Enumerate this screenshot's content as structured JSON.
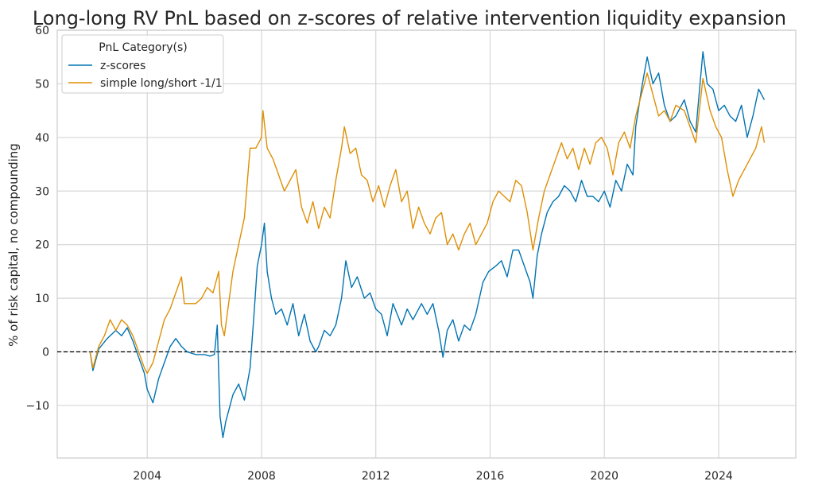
{
  "chart_data": {
    "type": "line",
    "title": "Long-long RV PnL based on z-scores of relative intervention liquidity expansion",
    "xlabel": "",
    "ylabel": "% of risk capital, no compounding",
    "xlim": [
      2000.85,
      2026.7
    ],
    "ylim": [
      -19.8,
      60
    ],
    "x_ticks": [
      2004,
      2008,
      2012,
      2016,
      2020,
      2024
    ],
    "x_tick_labels": [
      "2004",
      "2008",
      "2012",
      "2016",
      "2020",
      "2024"
    ],
    "y_ticks": [
      -10,
      0,
      10,
      20,
      30,
      40,
      50,
      60
    ],
    "y_tick_labels": [
      "−10",
      "0",
      "10",
      "20",
      "30",
      "40",
      "50",
      "60"
    ],
    "grid": true,
    "zero_line": {
      "y": 0,
      "style": "dashed",
      "color": "#000000"
    },
    "legend": {
      "title": "PnL Category(s)",
      "position": "top-left",
      "entries": [
        "z-scores",
        "simple long/short -1/1"
      ]
    },
    "series": [
      {
        "name": "z-scores",
        "color": "#0173b2",
        "points": [
          [
            2002.0,
            0
          ],
          [
            2002.1,
            -3.5
          ],
          [
            2002.3,
            0.5
          ],
          [
            2002.6,
            2.5
          ],
          [
            2002.9,
            4
          ],
          [
            2003.1,
            3
          ],
          [
            2003.3,
            4.5
          ],
          [
            2003.5,
            2
          ],
          [
            2003.7,
            -1
          ],
          [
            2003.9,
            -4
          ],
          [
            2004.0,
            -7
          ],
          [
            2004.2,
            -9.5
          ],
          [
            2004.4,
            -5
          ],
          [
            2004.6,
            -2
          ],
          [
            2004.8,
            1
          ],
          [
            2005.0,
            2.5
          ],
          [
            2005.2,
            1
          ],
          [
            2005.4,
            0
          ],
          [
            2005.7,
            -0.5
          ],
          [
            2006.0,
            -0.5
          ],
          [
            2006.2,
            -0.8
          ],
          [
            2006.35,
            -0.5
          ],
          [
            2006.45,
            5
          ],
          [
            2006.55,
            -12
          ],
          [
            2006.65,
            -16
          ],
          [
            2006.75,
            -13
          ],
          [
            2006.9,
            -10
          ],
          [
            2007.0,
            -8
          ],
          [
            2007.2,
            -6
          ],
          [
            2007.4,
            -9
          ],
          [
            2007.6,
            -3
          ],
          [
            2007.75,
            8
          ],
          [
            2007.85,
            16
          ],
          [
            2008.0,
            20
          ],
          [
            2008.1,
            24
          ],
          [
            2008.2,
            15
          ],
          [
            2008.35,
            10
          ],
          [
            2008.5,
            7
          ],
          [
            2008.7,
            8
          ],
          [
            2008.9,
            5
          ],
          [
            2009.1,
            9
          ],
          [
            2009.3,
            3
          ],
          [
            2009.5,
            7
          ],
          [
            2009.7,
            2
          ],
          [
            2009.9,
            0
          ],
          [
            2010.0,
            1
          ],
          [
            2010.2,
            4
          ],
          [
            2010.4,
            3
          ],
          [
            2010.6,
            5
          ],
          [
            2010.8,
            10
          ],
          [
            2010.95,
            17
          ],
          [
            2011.15,
            12
          ],
          [
            2011.35,
            14
          ],
          [
            2011.6,
            10
          ],
          [
            2011.8,
            11
          ],
          [
            2012.0,
            8
          ],
          [
            2012.2,
            7
          ],
          [
            2012.4,
            3
          ],
          [
            2012.6,
            9
          ],
          [
            2012.9,
            5
          ],
          [
            2013.1,
            8
          ],
          [
            2013.3,
            6
          ],
          [
            2013.6,
            9
          ],
          [
            2013.8,
            7
          ],
          [
            2014.0,
            9
          ],
          [
            2014.2,
            4
          ],
          [
            2014.35,
            -1
          ],
          [
            2014.5,
            4
          ],
          [
            2014.7,
            6
          ],
          [
            2014.9,
            2
          ],
          [
            2015.1,
            5
          ],
          [
            2015.3,
            4
          ],
          [
            2015.5,
            7
          ],
          [
            2015.75,
            13
          ],
          [
            2015.95,
            15
          ],
          [
            2016.2,
            16
          ],
          [
            2016.4,
            17
          ],
          [
            2016.6,
            14
          ],
          [
            2016.8,
            19
          ],
          [
            2017.0,
            19
          ],
          [
            2017.2,
            16
          ],
          [
            2017.4,
            13
          ],
          [
            2017.5,
            10
          ],
          [
            2017.65,
            18
          ],
          [
            2017.8,
            22
          ],
          [
            2018.0,
            26
          ],
          [
            2018.2,
            28
          ],
          [
            2018.4,
            29
          ],
          [
            2018.6,
            31
          ],
          [
            2018.8,
            30
          ],
          [
            2019.0,
            28
          ],
          [
            2019.2,
            32
          ],
          [
            2019.4,
            29
          ],
          [
            2019.6,
            29
          ],
          [
            2019.8,
            28
          ],
          [
            2020.0,
            30
          ],
          [
            2020.2,
            27
          ],
          [
            2020.4,
            32
          ],
          [
            2020.6,
            30
          ],
          [
            2020.8,
            35
          ],
          [
            2021.0,
            33
          ],
          [
            2021.1,
            42
          ],
          [
            2021.3,
            49
          ],
          [
            2021.5,
            55
          ],
          [
            2021.7,
            50
          ],
          [
            2021.9,
            52
          ],
          [
            2022.1,
            46
          ],
          [
            2022.3,
            43
          ],
          [
            2022.5,
            44
          ],
          [
            2022.8,
            47
          ],
          [
            2023.0,
            43
          ],
          [
            2023.2,
            41
          ],
          [
            2023.45,
            56
          ],
          [
            2023.6,
            50
          ],
          [
            2023.8,
            49
          ],
          [
            2024.0,
            45
          ],
          [
            2024.2,
            46
          ],
          [
            2024.4,
            44
          ],
          [
            2024.6,
            43
          ],
          [
            2024.8,
            46
          ],
          [
            2025.0,
            40
          ],
          [
            2025.2,
            44
          ],
          [
            2025.4,
            49
          ],
          [
            2025.6,
            47
          ]
        ]
      },
      {
        "name": "simple long/short -1/1",
        "color": "#de8f05",
        "points": [
          [
            2002.0,
            0
          ],
          [
            2002.1,
            -3
          ],
          [
            2002.3,
            1
          ],
          [
            2002.5,
            3
          ],
          [
            2002.7,
            6
          ],
          [
            2002.9,
            4
          ],
          [
            2003.1,
            6
          ],
          [
            2003.3,
            5
          ],
          [
            2003.5,
            3
          ],
          [
            2003.7,
            0
          ],
          [
            2003.9,
            -3
          ],
          [
            2004.0,
            -4
          ],
          [
            2004.2,
            -2
          ],
          [
            2004.4,
            2
          ],
          [
            2004.6,
            6
          ],
          [
            2004.8,
            8
          ],
          [
            2005.0,
            11
          ],
          [
            2005.2,
            14
          ],
          [
            2005.3,
            9
          ],
          [
            2005.5,
            9
          ],
          [
            2005.7,
            9
          ],
          [
            2005.9,
            10
          ],
          [
            2006.1,
            12
          ],
          [
            2006.3,
            11
          ],
          [
            2006.5,
            15
          ],
          [
            2006.6,
            5
          ],
          [
            2006.7,
            3
          ],
          [
            2006.8,
            7
          ],
          [
            2007.0,
            15
          ],
          [
            2007.2,
            20
          ],
          [
            2007.4,
            25
          ],
          [
            2007.6,
            38
          ],
          [
            2007.8,
            38
          ],
          [
            2008.0,
            40
          ],
          [
            2008.05,
            45
          ],
          [
            2008.2,
            38
          ],
          [
            2008.4,
            36
          ],
          [
            2008.6,
            33
          ],
          [
            2008.8,
            30
          ],
          [
            2009.0,
            32
          ],
          [
            2009.2,
            34
          ],
          [
            2009.4,
            27
          ],
          [
            2009.6,
            24
          ],
          [
            2009.8,
            28
          ],
          [
            2010.0,
            23
          ],
          [
            2010.2,
            27
          ],
          [
            2010.4,
            25
          ],
          [
            2010.6,
            32
          ],
          [
            2010.8,
            38
          ],
          [
            2010.9,
            42
          ],
          [
            2011.1,
            37
          ],
          [
            2011.3,
            38
          ],
          [
            2011.5,
            33
          ],
          [
            2011.7,
            32
          ],
          [
            2011.9,
            28
          ],
          [
            2012.1,
            31
          ],
          [
            2012.3,
            27
          ],
          [
            2012.5,
            31
          ],
          [
            2012.7,
            34
          ],
          [
            2012.9,
            28
          ],
          [
            2013.1,
            30
          ],
          [
            2013.3,
            23
          ],
          [
            2013.5,
            27
          ],
          [
            2013.7,
            24
          ],
          [
            2013.9,
            22
          ],
          [
            2014.1,
            25
          ],
          [
            2014.3,
            26
          ],
          [
            2014.5,
            20
          ],
          [
            2014.7,
            22
          ],
          [
            2014.9,
            19
          ],
          [
            2015.1,
            22
          ],
          [
            2015.3,
            24
          ],
          [
            2015.5,
            20
          ],
          [
            2015.7,
            22
          ],
          [
            2015.9,
            24
          ],
          [
            2016.1,
            28
          ],
          [
            2016.3,
            30
          ],
          [
            2016.5,
            29
          ],
          [
            2016.7,
            28
          ],
          [
            2016.9,
            32
          ],
          [
            2017.1,
            31
          ],
          [
            2017.3,
            26
          ],
          [
            2017.5,
            19
          ],
          [
            2017.7,
            25
          ],
          [
            2017.9,
            30
          ],
          [
            2018.1,
            33
          ],
          [
            2018.3,
            36
          ],
          [
            2018.5,
            39
          ],
          [
            2018.7,
            36
          ],
          [
            2018.9,
            38
          ],
          [
            2019.1,
            34
          ],
          [
            2019.3,
            38
          ],
          [
            2019.5,
            35
          ],
          [
            2019.7,
            39
          ],
          [
            2019.9,
            40
          ],
          [
            2020.1,
            38
          ],
          [
            2020.3,
            33
          ],
          [
            2020.5,
            39
          ],
          [
            2020.7,
            41
          ],
          [
            2020.9,
            38
          ],
          [
            2021.1,
            44
          ],
          [
            2021.3,
            48
          ],
          [
            2021.5,
            52
          ],
          [
            2021.7,
            48
          ],
          [
            2021.9,
            44
          ],
          [
            2022.1,
            45
          ],
          [
            2022.3,
            43
          ],
          [
            2022.5,
            46
          ],
          [
            2022.8,
            45
          ],
          [
            2023.0,
            42
          ],
          [
            2023.2,
            39
          ],
          [
            2023.45,
            51
          ],
          [
            2023.7,
            45
          ],
          [
            2023.9,
            42
          ],
          [
            2024.1,
            40
          ],
          [
            2024.3,
            34
          ],
          [
            2024.5,
            29
          ],
          [
            2024.7,
            32
          ],
          [
            2024.9,
            34
          ],
          [
            2025.1,
            36
          ],
          [
            2025.3,
            38
          ],
          [
            2025.5,
            42
          ],
          [
            2025.6,
            39
          ]
        ]
      }
    ]
  }
}
